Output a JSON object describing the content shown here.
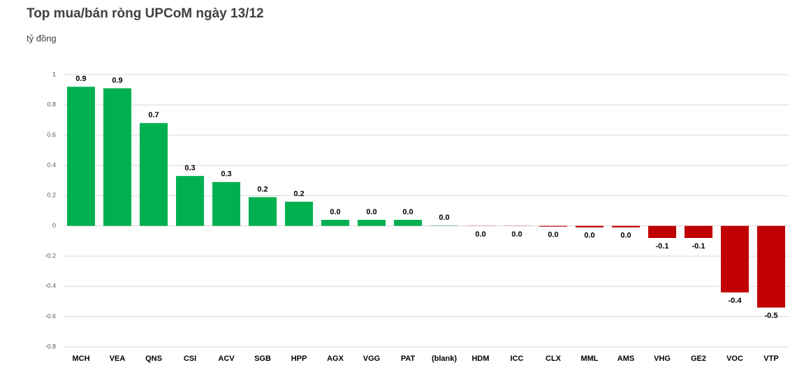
{
  "chart_data": {
    "type": "bar",
    "title": "Top mua/bán ròng UPCoM ngày 13/12",
    "subtitle": "tỷ đồng",
    "categories": [
      "MCH",
      "VEA",
      "QNS",
      "CSI",
      "ACV",
      "SGB",
      "HPP",
      "AGX",
      "VGG",
      "PAT",
      "(blank)",
      "HDM",
      "ICC",
      "CLX",
      "MML",
      "AMS",
      "VHG",
      "GE2",
      "VOC",
      "VTP"
    ],
    "values": [
      0.92,
      0.91,
      0.68,
      0.33,
      0.29,
      0.19,
      0.16,
      0.04,
      0.04,
      0.04,
      0.002,
      -0.001,
      -0.001,
      -0.005,
      -0.01,
      -0.01,
      -0.08,
      -0.08,
      -0.44,
      -0.54
    ],
    "value_labels": [
      "0.9",
      "0.9",
      "0.7",
      "0.3",
      "0.3",
      "0.2",
      "0.2",
      "0.0",
      "0.0",
      "0.0",
      "0.0",
      "0.0",
      "0.0",
      "0.0",
      "0.0",
      "0.0",
      "-0.1",
      "-0.1",
      "-0.4",
      "-0.5"
    ],
    "positive_color": "#00b050",
    "negative_color": "#c00000",
    "ylim": [
      -0.8,
      1
    ],
    "yticks": [
      -0.8,
      -0.6,
      -0.4,
      -0.2,
      0,
      0.2,
      0.4,
      0.6,
      0.8,
      1
    ],
    "grid": true
  }
}
